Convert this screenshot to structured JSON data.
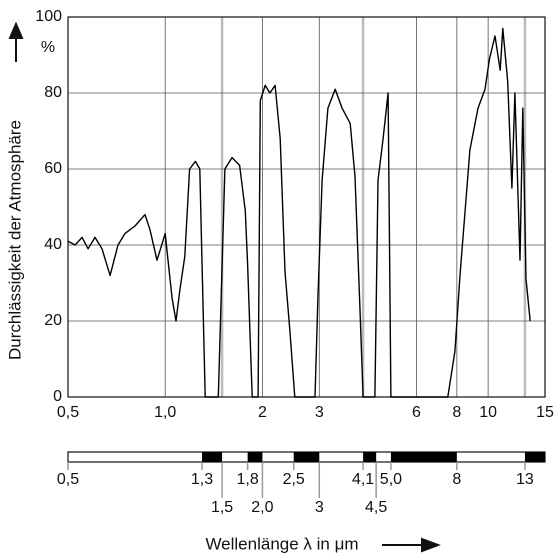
{
  "chart_data": {
    "type": "line",
    "y_label": "Durchlässigkeit der Atmosphäre",
    "y_unit": "%",
    "x_label": "Wellenlänge λ in μm",
    "log_x": true,
    "grid": true,
    "color": "#000000",
    "xlim": [
      0.5,
      15
    ],
    "ylim": [
      0,
      100
    ],
    "xticks": [
      {
        "value": 0.5,
        "label": "0,5"
      },
      {
        "value": 1.0,
        "label": "1,0"
      },
      2,
      3,
      6,
      8,
      10,
      15
    ],
    "yticks": [
      0,
      20,
      40,
      60,
      80,
      100
    ],
    "x": [
      0.5,
      0.526,
      0.553,
      0.577,
      0.606,
      0.637,
      0.675,
      0.714,
      0.75,
      0.806,
      0.866,
      0.897,
      0.943,
      1.0,
      1.02,
      1.05,
      1.08,
      1.11,
      1.15,
      1.19,
      1.24,
      1.28,
      1.33,
      1.46,
      1.53,
      1.61,
      1.7,
      1.77,
      1.8,
      1.86,
      1.94,
      1.97,
      2.04,
      2.11,
      2.19,
      2.27,
      2.35,
      2.43,
      2.52,
      2.91,
      2.97,
      3.06,
      3.19,
      3.36,
      3.53,
      3.74,
      3.87,
      4.01,
      4.1,
      4.46,
      4.56,
      4.73,
      4.9,
      5.0,
      7.5,
      7.89,
      8.18,
      8.78,
      9.3,
      9.78,
      10.1,
      10.5,
      10.9,
      11.1,
      11.5,
      11.85,
      12.1,
      12.55,
      12.8,
      13.1,
      13.5
    ],
    "values": [
      41,
      40,
      42,
      39,
      42,
      39,
      32,
      40,
      43,
      45,
      48,
      44,
      36,
      43,
      36,
      26,
      20,
      28,
      37,
      60,
      62,
      60,
      0,
      0,
      60,
      63,
      61,
      49,
      35,
      0,
      0,
      78,
      82,
      80,
      82,
      68,
      33,
      18,
      0,
      0,
      26,
      57,
      76,
      81,
      76,
      72,
      58,
      23,
      0,
      0,
      57,
      68,
      80,
      0,
      0,
      12,
      32,
      65,
      76,
      81,
      89,
      95,
      86,
      97,
      83,
      55,
      80,
      36,
      76,
      31,
      20
    ],
    "band_ticks": [
      {
        "value": 0.5,
        "label": "0,5"
      },
      {
        "value": 1.3,
        "label": "1,3"
      },
      {
        "value": 1.5,
        "label": "1,5"
      },
      {
        "value": 1.8,
        "label": "1,8"
      },
      {
        "value": 2.0,
        "label": "2,0"
      },
      {
        "value": 2.5,
        "label": "2,5"
      },
      3,
      {
        "value": 4.1,
        "label": "4,1"
      },
      {
        "value": 4.5,
        "label": "4,5"
      },
      {
        "value": 5.0,
        "label": "5,0"
      },
      8,
      13
    ],
    "absorption_bands": [
      {
        "from": 1.3,
        "to": 1.5
      },
      {
        "from": 1.8,
        "to": 2.0
      },
      {
        "from": 2.5,
        "to": 3
      },
      {
        "from": 4.1,
        "to": 4.5
      },
      {
        "from": 5.0,
        "to": 8
      },
      {
        "from": 13,
        "to": 15
      }
    ]
  }
}
